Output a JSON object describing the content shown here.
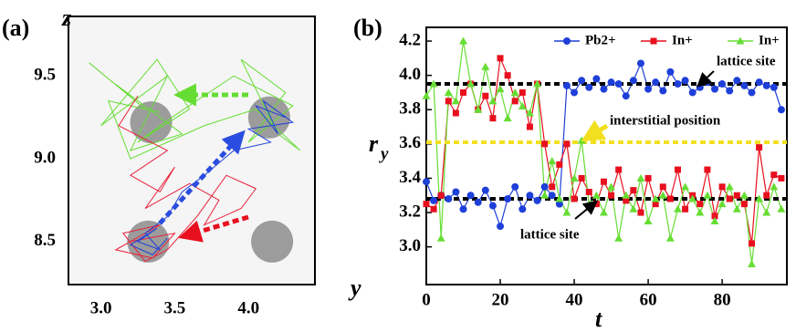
{
  "chart_data": [
    {
      "type": "trajectory",
      "panel_label": "(a)",
      "xlabel": "y",
      "ylabel": "z",
      "xlim": [
        2.78,
        4.45
      ],
      "ylim": [
        8.24,
        9.86
      ],
      "xticks": [
        {
          "value": 3,
          "label": "3.0"
        },
        {
          "value": 3.5,
          "label": "3.5"
        },
        {
          "value": 4,
          "label": "4.0"
        }
      ],
      "yticks": [
        {
          "value": 8.5,
          "label": "8.5"
        },
        {
          "value": 9,
          "label": "9.0"
        },
        {
          "value": 9.5,
          "label": "9.5"
        }
      ],
      "sites": {
        "color": "#8c8c8c",
        "x": [
          3.34,
          4.14,
          3.32,
          4.16
        ],
        "y": [
          9.22,
          9.25,
          8.5,
          8.5
        ]
      },
      "series": [
        {
          "color": "#66dd33",
          "x": [
            2.92,
            3.3,
            3.1,
            3.55,
            3.2,
            3.45,
            3.0,
            3.38,
            3.6,
            3.25,
            3.48,
            3.9,
            4.3,
            4.0,
            4.25,
            3.95,
            4.2,
            4.35,
            4.05,
            3.7,
            3.2,
            3.05,
            3.4
          ],
          "y": [
            9.58,
            9.3,
            9.45,
            9.15,
            9.05,
            9.5,
            9.2,
            9.6,
            9.3,
            9.1,
            9.25,
            9.5,
            9.32,
            9.1,
            9.4,
            9.6,
            9.15,
            9.05,
            9.3,
            9.2,
            9.0,
            9.35,
            9.28
          ]
        },
        {
          "color": "#e8203a",
          "x": [
            3.25,
            3.12,
            3.45,
            3.2,
            3.4,
            3.5,
            3.3,
            3.6,
            3.8,
            3.7,
            3.95,
            4.05,
            3.85,
            3.65,
            3.45,
            3.3,
            3.15,
            3.4,
            3.1,
            3.35,
            3.5,
            3.2
          ],
          "y": [
            9.38,
            9.2,
            9.05,
            8.9,
            8.8,
            8.95,
            8.7,
            8.85,
            8.75,
            8.6,
            8.7,
            8.82,
            8.9,
            8.65,
            8.45,
            8.38,
            8.55,
            8.6,
            8.45,
            8.4,
            8.55,
            8.5
          ]
        },
        {
          "color": "#1e3fd8",
          "x": [
            4.25,
            4.05,
            4.2,
            4.1,
            4.3,
            4.0,
            4.15,
            3.9,
            3.7,
            3.55,
            3.45,
            3.3,
            3.4,
            3.25,
            3.38,
            3.2,
            3.35,
            3.45
          ],
          "y": [
            9.25,
            9.32,
            9.15,
            9.35,
            9.22,
            9.18,
            9.1,
            9.05,
            8.9,
            8.8,
            8.65,
            8.55,
            8.45,
            8.5,
            8.58,
            8.48,
            8.42,
            8.52
          ]
        }
      ]
    },
    {
      "type": "line",
      "panel_label": "(b)",
      "xlabel": "t",
      "ylabel": "r",
      "ylabel_sub": "y",
      "xlim": [
        0,
        97.5
      ],
      "ylim": [
        2.78,
        4.28
      ],
      "xticks": [
        0,
        20,
        40,
        60,
        80
      ],
      "yticks": [
        {
          "value": 3,
          "label": "3.0"
        },
        3.2,
        3.4,
        3.6,
        3.8,
        {
          "value": 4,
          "label": "4.0"
        },
        4.2
      ],
      "x": [
        0,
        2,
        4,
        6,
        8,
        10,
        12,
        14,
        16,
        18,
        20,
        22,
        24,
        26,
        28,
        30,
        32,
        34,
        36,
        38,
        40,
        42,
        44,
        46,
        48,
        50,
        52,
        54,
        56,
        58,
        60,
        62,
        64,
        66,
        68,
        70,
        72,
        74,
        76,
        78,
        80,
        82,
        84,
        86,
        88,
        90,
        92,
        94,
        96
      ],
      "series": [
        {
          "name": "Pb2+",
          "color": "#1e3fd8",
          "marker": "circle",
          "values": [
            3.38,
            3.27,
            3.3,
            3.28,
            3.32,
            3.22,
            3.3,
            3.26,
            3.33,
            3.24,
            3.12,
            3.28,
            3.35,
            3.22,
            3.3,
            3.27,
            3.35,
            3.3,
            3.25,
            3.94,
            3.9,
            3.97,
            3.93,
            3.98,
            3.92,
            3.96,
            3.95,
            3.88,
            3.97,
            4.07,
            3.92,
            3.96,
            3.91,
            4.02,
            3.95,
            3.97,
            3.9,
            3.93,
            3.96,
            3.92,
            3.95,
            3.91,
            3.97,
            3.94,
            3.9,
            3.96,
            3.94,
            3.93,
            3.8
          ]
        },
        {
          "name": "In+",
          "color": "#e8101e",
          "marker": "square",
          "values": [
            3.25,
            3.22,
            3.3,
            3.85,
            3.78,
            3.9,
            3.95,
            3.8,
            3.88,
            3.75,
            4.1,
            4.0,
            3.85,
            3.9,
            3.7,
            3.95,
            3.6,
            3.35,
            3.48,
            3.6,
            3.28,
            3.4,
            3.32,
            3.25,
            3.38,
            3.3,
            3.45,
            3.27,
            3.33,
            3.2,
            3.4,
            3.25,
            3.35,
            3.28,
            3.45,
            3.22,
            3.3,
            3.25,
            3.45,
            3.18,
            3.35,
            3.28,
            3.3,
            3.25,
            3.02,
            3.58,
            3.3,
            3.42,
            3.4
          ]
        },
        {
          "name": "In+",
          "color": "#66dd33",
          "marker": "triangle",
          "values": [
            3.88,
            3.95,
            3.05,
            3.9,
            3.85,
            4.2,
            3.95,
            3.8,
            4.05,
            3.85,
            3.92,
            3.75,
            3.9,
            3.82,
            3.78,
            3.95,
            3.3,
            3.5,
            3.28,
            3.2,
            3.4,
            3.62,
            3.25,
            3.3,
            3.2,
            3.35,
            3.05,
            3.3,
            3.22,
            3.4,
            3.15,
            3.28,
            3.3,
            3.05,
            3.22,
            3.35,
            3.28,
            3.2,
            3.3,
            3.15,
            3.25,
            3.35,
            3.22,
            3.3,
            2.9,
            3.28,
            3.2,
            3.35,
            3.22
          ]
        }
      ],
      "hlines": [
        {
          "value": 3.95,
          "color": "#000000"
        },
        {
          "value": 3.61,
          "color": "#f2e020"
        },
        {
          "value": 3.28,
          "color": "#000000"
        }
      ],
      "annotations": [
        "lattice site",
        "interstitial position",
        "lattice site"
      ]
    }
  ]
}
